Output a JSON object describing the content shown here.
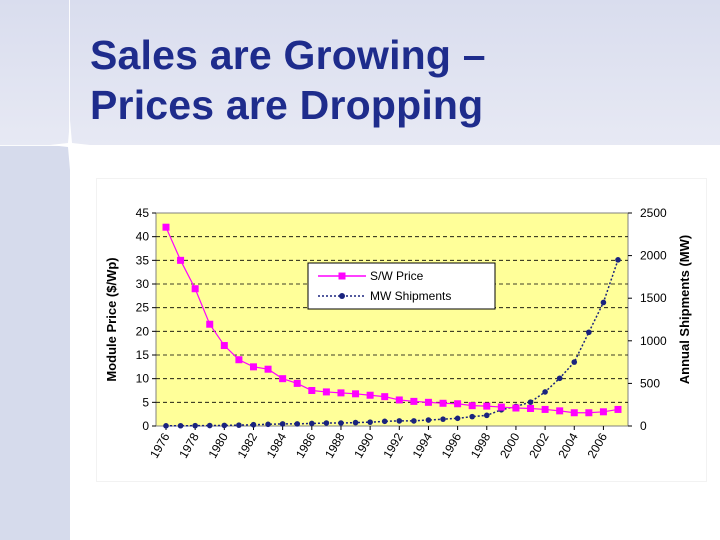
{
  "slide": {
    "title_line1": "Sales are Growing –",
    "title_line2": "Prices are Dropping"
  },
  "colors": {
    "title": "#1e2c8c",
    "plot_bg": "#ffff99",
    "price_series": "#ff00ff",
    "shipments_series": "#1a237e"
  },
  "chart_data": {
    "type": "line",
    "title": "",
    "xlabel": "",
    "ylabel": "Module Price ($/Wp)",
    "y2label": "Annual Shipments (MW)",
    "ylim": [
      0,
      45
    ],
    "y2lim": [
      0,
      2500
    ],
    "yticks": [
      "0",
      "5",
      "10",
      "15",
      "20",
      "25",
      "30",
      "35",
      "40",
      "45"
    ],
    "y2ticks": [
      "0",
      "500",
      "1000",
      "1500",
      "2000",
      "2500"
    ],
    "xtick_labels": [
      "1976",
      "1978",
      "1980",
      "1982",
      "1984",
      "1986",
      "1988",
      "1990",
      "1992",
      "1994",
      "1996",
      "1998",
      "2000",
      "2002",
      "2004",
      "2006"
    ],
    "legend_position": "top-center",
    "grid": "horizontal dashed",
    "x": [
      1976,
      1977,
      1978,
      1979,
      1980,
      1981,
      1982,
      1983,
      1984,
      1985,
      1986,
      1987,
      1988,
      1989,
      1990,
      1991,
      1992,
      1993,
      1994,
      1995,
      1996,
      1997,
      1998,
      1999,
      2000,
      2001,
      2002,
      2003,
      2004,
      2005,
      2006,
      2007
    ],
    "series": [
      {
        "name": "S/W Price",
        "axis": "left",
        "marker": "square",
        "values": [
          42,
          35,
          29,
          21.5,
          17,
          14,
          12.5,
          12,
          10,
          9,
          7.5,
          7.2,
          7,
          6.8,
          6.5,
          6.2,
          5.5,
          5.2,
          5.0,
          4.8,
          4.7,
          4.3,
          4.2,
          4.0,
          3.8,
          3.7,
          3.5,
          3.2,
          2.8,
          2.8,
          3.0,
          3.5
        ]
      },
      {
        "name": "MW Shipments",
        "axis": "right",
        "marker": "circle",
        "line": "dotted",
        "values": [
          2,
          3,
          4,
          5,
          7,
          10,
          15,
          20,
          25,
          25,
          30,
          35,
          35,
          40,
          45,
          55,
          60,
          60,
          70,
          80,
          90,
          110,
          125,
          190,
          230,
          280,
          400,
          560,
          750,
          1100,
          1450,
          1950
        ]
      }
    ]
  }
}
